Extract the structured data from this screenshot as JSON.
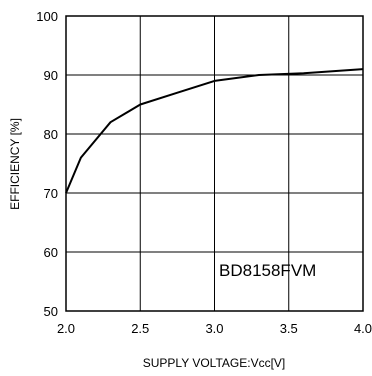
{
  "chart_data": {
    "type": "line",
    "xlabel": "SUPPLY VOLTAGE:Vcc[V]",
    "ylabel": "EFFICIENCY [%]",
    "xlim": [
      2.0,
      4.0
    ],
    "ylim": [
      50,
      100
    ],
    "x_ticks": [
      "2.0",
      "2.5",
      "3.0",
      "3.5",
      "4.0"
    ],
    "y_ticks": [
      "50",
      "60",
      "70",
      "80",
      "90",
      "100"
    ],
    "x_tick_values": [
      2.0,
      2.5,
      3.0,
      3.5,
      4.0
    ],
    "y_tick_values": [
      50,
      60,
      70,
      80,
      90,
      100
    ],
    "grid": true,
    "annotation": "BD8158FVM",
    "series": [
      {
        "x": [
          2.0,
          2.1,
          2.3,
          2.5,
          2.75,
          3.0,
          3.3,
          3.6,
          4.0
        ],
        "y": [
          70,
          76,
          82,
          85,
          87,
          89,
          90,
          90.3,
          91
        ]
      }
    ],
    "colors": {
      "line": "#000000",
      "grid": "#000000",
      "background": "#ffffff"
    }
  }
}
